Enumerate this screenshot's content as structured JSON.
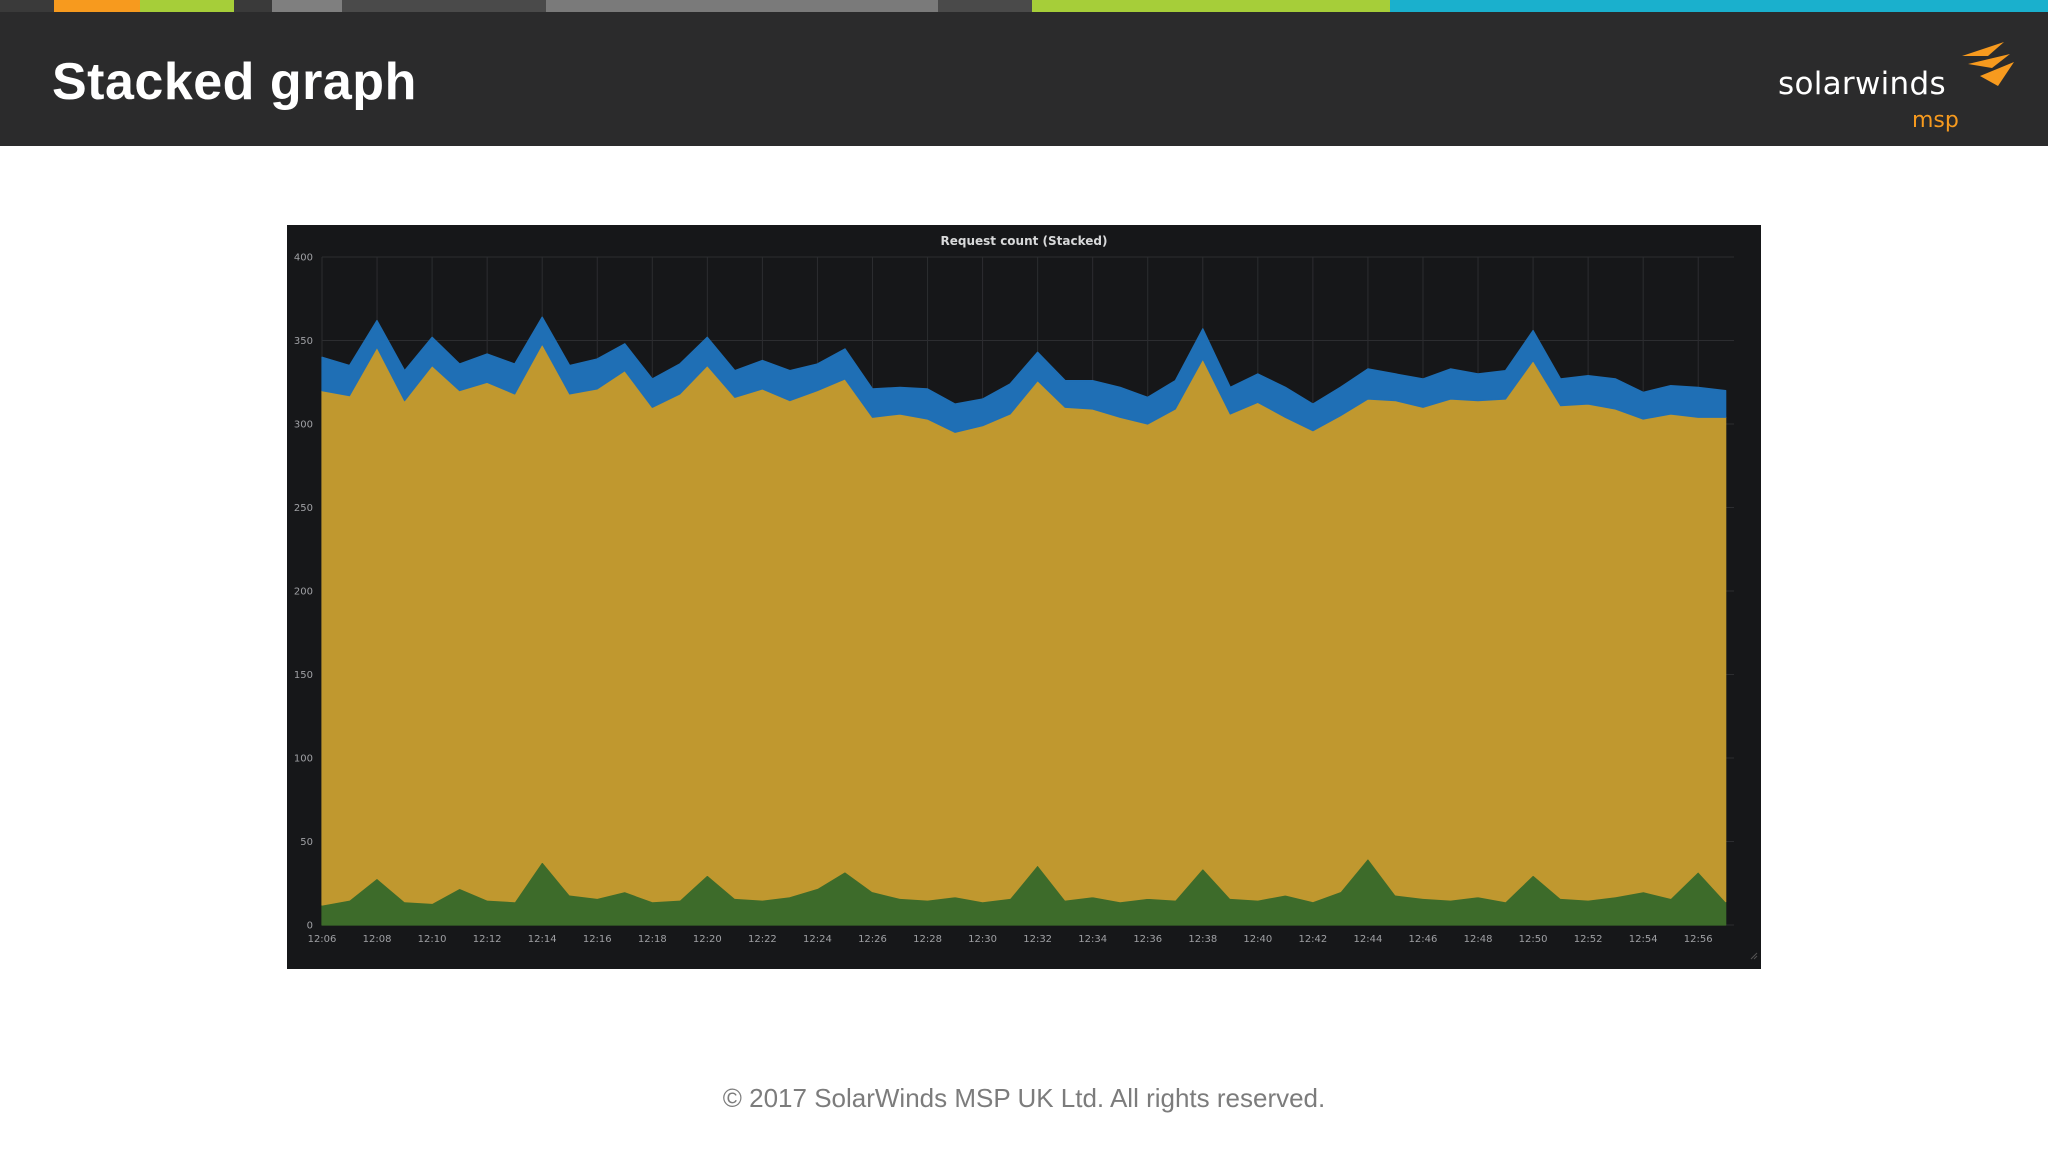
{
  "slide": {
    "title": "Stacked graph",
    "footer": "© 2017 SolarWinds MSP UK Ltd.  All rights reserved."
  },
  "logo": {
    "text": "solarwinds",
    "sub": "msp",
    "mark_icon": "solarwinds-flame-icon",
    "brand_color": "#f79a1e"
  },
  "top_strip": {
    "colors": [
      "#3a3a3a",
      "#f79a1e",
      "#a6ce39",
      "#3a3a3a",
      "#7f7f7f",
      "#4a4a4a",
      "#7a7a7a",
      "#4a4a4a",
      "#a6ce39",
      "#1ab0cd"
    ]
  },
  "chart_data": {
    "type": "area",
    "stacked": true,
    "title": "Request count (Stacked)",
    "xlabel": "",
    "ylabel": "",
    "ylim": [
      0,
      400
    ],
    "xlim": [
      "12:06",
      "12:57"
    ],
    "yticks": [
      0,
      50,
      100,
      150,
      200,
      250,
      300,
      350,
      400
    ],
    "xticks": [
      "12:06",
      "12:08",
      "12:10",
      "12:12",
      "12:14",
      "12:16",
      "12:18",
      "12:20",
      "12:22",
      "12:24",
      "12:26",
      "12:28",
      "12:30",
      "12:32",
      "12:34",
      "12:36",
      "12:38",
      "12:40",
      "12:42",
      "12:44",
      "12:46",
      "12:48",
      "12:50",
      "12:52",
      "12:54",
      "12:56"
    ],
    "grid": true,
    "legend": "none",
    "x": [
      "12:06",
      "12:07",
      "12:08",
      "12:09",
      "12:10",
      "12:11",
      "12:12",
      "12:13",
      "12:14",
      "12:15",
      "12:16",
      "12:17",
      "12:18",
      "12:19",
      "12:20",
      "12:21",
      "12:22",
      "12:23",
      "12:24",
      "12:25",
      "12:26",
      "12:27",
      "12:28",
      "12:29",
      "12:30",
      "12:31",
      "12:32",
      "12:33",
      "12:34",
      "12:35",
      "12:36",
      "12:37",
      "12:38",
      "12:39",
      "12:40",
      "12:41",
      "12:42",
      "12:43",
      "12:44",
      "12:45",
      "12:46",
      "12:47",
      "12:48",
      "12:49",
      "12:50",
      "12:51",
      "12:52",
      "12:53",
      "12:54",
      "12:55",
      "12:56",
      "12:57"
    ],
    "series": [
      {
        "color": "#3d6b2a",
        "values": [
          12,
          15,
          28,
          14,
          13,
          22,
          15,
          14,
          38,
          18,
          16,
          20,
          14,
          15,
          30,
          16,
          15,
          17,
          22,
          32,
          20,
          16,
          15,
          17,
          14,
          16,
          36,
          15,
          17,
          14,
          16,
          15,
          34,
          16,
          15,
          18,
          14,
          20,
          40,
          18,
          16,
          15,
          17,
          14,
          30,
          16,
          15,
          17,
          20,
          16,
          32,
          14
        ]
      },
      {
        "color": "#c0982f",
        "values": [
          308,
          302,
          318,
          300,
          322,
          298,
          310,
          304,
          310,
          300,
          305,
          312,
          296,
          303,
          305,
          300,
          306,
          297,
          298,
          295,
          284,
          290,
          288,
          278,
          285,
          290,
          290,
          295,
          292,
          290,
          284,
          294,
          305,
          290,
          298,
          286,
          282,
          285,
          275,
          296,
          294,
          300,
          297,
          301,
          308,
          295,
          297,
          292,
          283,
          290,
          272,
          290
        ]
      },
      {
        "color": "#1f6fb5",
        "values": [
          20,
          18,
          16,
          18,
          17,
          16,
          17,
          18,
          16,
          17,
          18,
          16,
          17,
          18,
          17,
          16,
          17,
          18,
          16,
          18,
          17,
          16,
          18,
          17,
          16,
          18,
          17,
          16,
          17,
          18,
          16,
          17,
          18,
          16,
          17,
          18,
          16,
          17,
          18,
          16,
          17,
          18,
          16,
          17,
          18,
          16,
          17,
          18,
          16,
          17,
          18,
          16
        ]
      }
    ]
  }
}
